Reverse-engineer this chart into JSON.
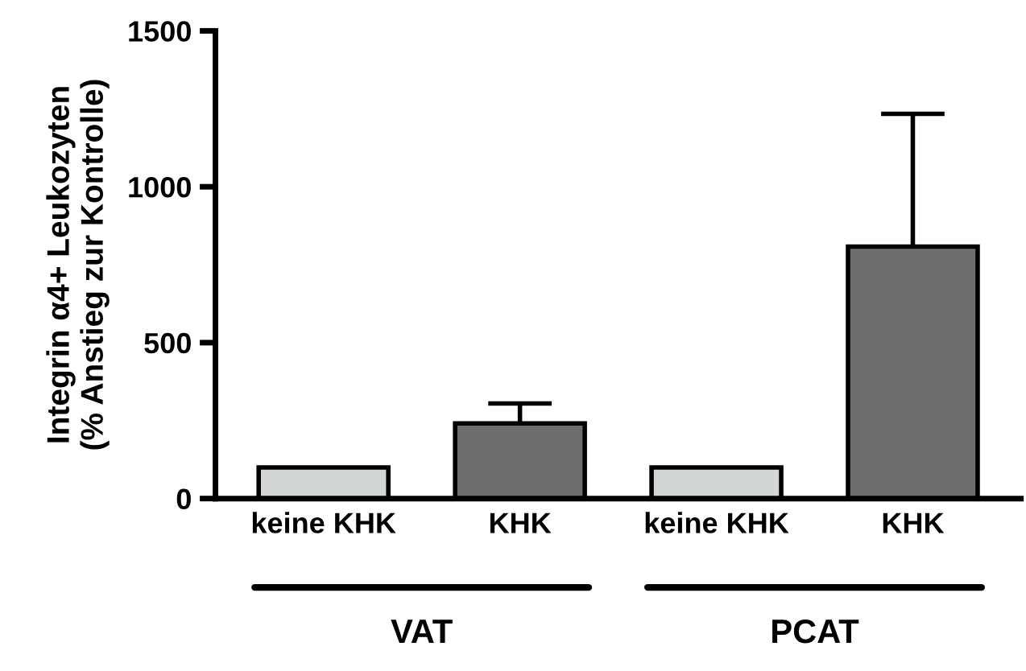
{
  "chart_data": {
    "type": "bar",
    "ylabel": "Integrin α4+ Leukozyten\n(% Anstieg zur Kontrolle)",
    "categories": [
      "keine KHK",
      "KHK",
      "keine KHK",
      "KHK"
    ],
    "values": [
      100,
      241,
      100,
      808
    ],
    "colors": [
      "#d4d6d5",
      "#6d6e6d",
      "#d4d6d5",
      "#6d6e6d"
    ],
    "errors": [
      null,
      [
        241,
        305
      ],
      null,
      [
        808,
        1234
      ]
    ],
    "ylim": [
      0,
      1500
    ],
    "yticks": [
      0,
      500,
      1000,
      1500
    ],
    "grid": false,
    "legend": false,
    "annotations": [
      "VAT",
      "PCAT"
    ]
  }
}
